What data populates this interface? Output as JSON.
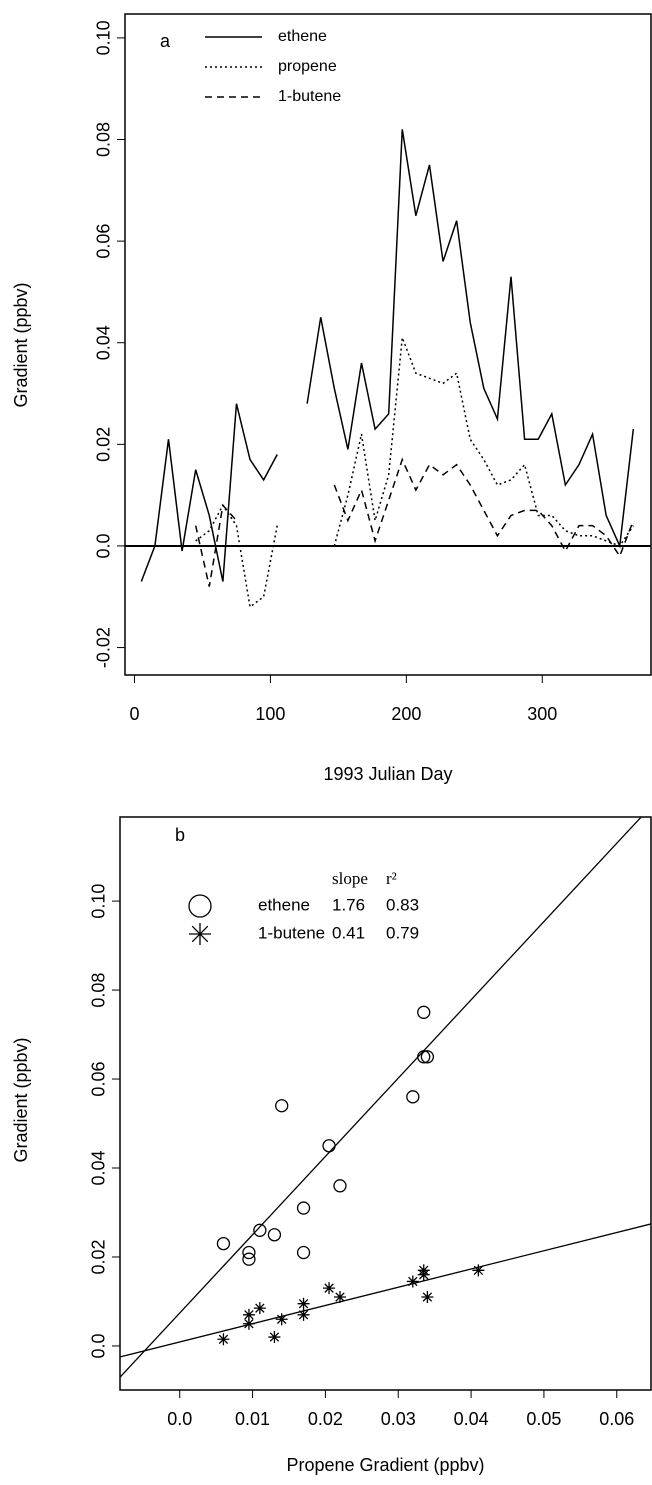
{
  "chart_data": [
    {
      "type": "line",
      "panel_label": "a",
      "xlabel": "1993 Julian Day",
      "ylabel": "Gradient (ppbv)",
      "xlim": [
        -7,
        380
      ],
      "ylim": [
        -0.0254,
        0.1047
      ],
      "xticks": [
        0,
        100,
        200,
        300
      ],
      "yticks": [
        -0.02,
        {
          "value": 0,
          "label": "0.0"
        },
        0.02,
        0.04,
        0.06,
        0.08,
        {
          "value": 0.1,
          "label": "0.10"
        }
      ],
      "hline": 0,
      "x": [
        5,
        15,
        25,
        35,
        45,
        55,
        65,
        75,
        85,
        95,
        105,
        117,
        127,
        137,
        147,
        157,
        167,
        177,
        187,
        197,
        207,
        217,
        227,
        237,
        247,
        257,
        267,
        277,
        287,
        297,
        307,
        317,
        327,
        337,
        347,
        357,
        367
      ],
      "series": [
        {
          "name": "ethene",
          "color": "#000000",
          "dash": "solid",
          "values": [
            -0.007,
            0.0,
            0.021,
            -0.001,
            0.015,
            0.006,
            -0.007,
            0.028,
            0.017,
            0.013,
            0.018,
            null,
            0.028,
            0.045,
            0.031,
            0.019,
            0.036,
            0.023,
            0.026,
            0.082,
            0.065,
            0.075,
            0.056,
            0.064,
            0.044,
            0.031,
            0.025,
            0.053,
            0.021,
            0.021,
            0.026,
            0.012,
            0.016,
            0.022,
            0.006,
            0.0,
            0.023
          ]
        },
        {
          "name": "propene",
          "color": "#000000",
          "dash": "dotted",
          "values": [
            null,
            null,
            null,
            null,
            0.001,
            0.003,
            0.008,
            0.004,
            -0.012,
            -0.01,
            0.004,
            null,
            null,
            null,
            0.0,
            0.01,
            0.022,
            0.005,
            0.014,
            0.041,
            0.034,
            0.033,
            0.032,
            0.034,
            0.021,
            0.017,
            0.012,
            0.013,
            0.016,
            0.006,
            0.006,
            0.003,
            0.002,
            0.002,
            0.001,
            0.0,
            0.004
          ]
        },
        {
          "name": "1-butene",
          "color": "#000000",
          "dash": "dashed",
          "values": [
            null,
            null,
            null,
            null,
            0.004,
            -0.008,
            0.008,
            0.005,
            null,
            null,
            null,
            null,
            null,
            null,
            0.012,
            0.005,
            0.011,
            0.001,
            0.009,
            0.017,
            0.011,
            0.016,
            0.014,
            0.016,
            0.012,
            0.007,
            0.002,
            0.006,
            0.007,
            0.007,
            0.004,
            -0.001,
            0.004,
            0.004,
            0.002,
            -0.002,
            0.005
          ]
        }
      ]
    },
    {
      "type": "scatter",
      "panel_label": "b",
      "xlabel": "Propene Gradient (ppbv)",
      "ylabel": "Gradient (ppbv)",
      "xlim": [
        -0.0082,
        0.0647
      ],
      "ylim": [
        -0.0099,
        0.1189
      ],
      "xticks": [
        {
          "value": 0,
          "label": "0.0"
        },
        0.01,
        0.02,
        0.03,
        0.04,
        0.05,
        0.06
      ],
      "yticks": [
        {
          "value": 0,
          "label": "0.0"
        },
        0.02,
        0.04,
        0.06,
        0.08,
        {
          "value": 0.1,
          "label": "0.10"
        }
      ],
      "legend_columns": [
        "slope",
        "r²"
      ],
      "series": [
        {
          "name": "ethene",
          "marker": "circle",
          "color": "#000000",
          "slope": 1.76,
          "r2": 0.83,
          "intercept": 0.0074,
          "x": [
            0.006,
            0.0095,
            0.0095,
            0.011,
            0.013,
            0.014,
            0.017,
            0.017,
            0.0205,
            0.022,
            0.032,
            0.0335,
            0.0335,
            0.034
          ],
          "values": [
            0.023,
            0.021,
            0.0195,
            0.026,
            0.025,
            0.054,
            0.021,
            0.031,
            0.045,
            0.036,
            0.056,
            0.075,
            0.065,
            0.065
          ]
        },
        {
          "name": "1-butene",
          "marker": "star",
          "color": "#000000",
          "slope": 0.41,
          "r2": 0.79,
          "intercept": 0.0009,
          "x": [
            0.006,
            0.0095,
            0.0095,
            0.011,
            0.013,
            0.014,
            0.017,
            0.017,
            0.0205,
            0.022,
            0.032,
            0.0335,
            0.0335,
            0.034,
            0.041
          ],
          "values": [
            0.0015,
            0.005,
            0.007,
            0.0085,
            0.002,
            0.006,
            0.007,
            0.0095,
            0.013,
            0.011,
            0.0145,
            0.017,
            0.016,
            0.011,
            0.017
          ]
        }
      ]
    }
  ]
}
